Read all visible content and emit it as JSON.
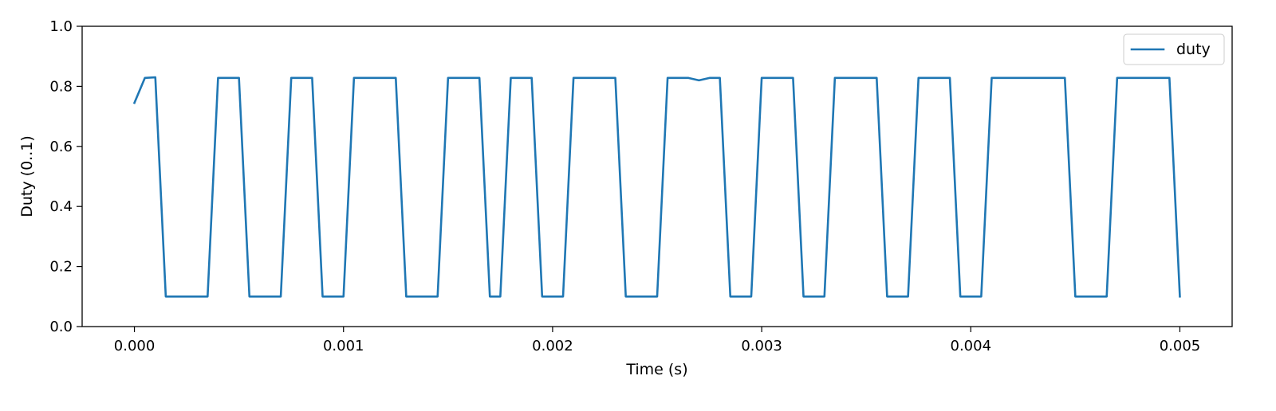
{
  "chart_data": {
    "type": "line",
    "title": "",
    "xlabel": "Time (s)",
    "ylabel": "Duty (0..1)",
    "xlim": [
      -0.00025,
      0.00525
    ],
    "ylim": [
      0.0,
      1.0
    ],
    "x_ticks": [
      0.0,
      0.001,
      0.002,
      0.003,
      0.004,
      0.005
    ],
    "x_tick_labels": [
      "0.000",
      "0.001",
      "0.002",
      "0.003",
      "0.004",
      "0.005"
    ],
    "y_ticks": [
      0.0,
      0.2,
      0.4,
      0.6,
      0.8,
      1.0
    ],
    "y_tick_labels": [
      "0.0",
      "0.2",
      "0.4",
      "0.6",
      "0.8",
      "1.0"
    ],
    "grid": false,
    "legend": {
      "position": "top-right",
      "entries": [
        "duty"
      ]
    },
    "series": [
      {
        "name": "duty",
        "color": "#1f77b4",
        "x": [
          0.0,
          5e-05,
          0.0001,
          0.00015,
          0.00035,
          0.0004,
          0.0005,
          0.00055,
          0.0007,
          0.00075,
          0.00085,
          0.0009,
          0.001,
          0.00105,
          0.00125,
          0.0013,
          0.00145,
          0.0015,
          0.00165,
          0.0017,
          0.00175,
          0.0018,
          0.0019,
          0.00195,
          0.00205,
          0.0021,
          0.0023,
          0.00235,
          0.0025,
          0.00255,
          0.00265,
          0.0027,
          0.00275,
          0.0028,
          0.00285,
          0.00295,
          0.003,
          0.00315,
          0.0032,
          0.0033,
          0.00335,
          0.00355,
          0.0036,
          0.0037,
          0.00375,
          0.0039,
          0.00395,
          0.00405,
          0.0041,
          0.00445,
          0.0045,
          0.00465,
          0.0047,
          0.00495,
          0.005
        ],
        "y": [
          0.745,
          0.828,
          0.83,
          0.1,
          0.1,
          0.828,
          0.828,
          0.1,
          0.1,
          0.828,
          0.828,
          0.1,
          0.1,
          0.828,
          0.828,
          0.1,
          0.1,
          0.828,
          0.828,
          0.1,
          0.1,
          0.828,
          0.828,
          0.1,
          0.1,
          0.828,
          0.828,
          0.1,
          0.1,
          0.828,
          0.828,
          0.82,
          0.828,
          0.828,
          0.1,
          0.1,
          0.828,
          0.828,
          0.1,
          0.1,
          0.828,
          0.828,
          0.1,
          0.1,
          0.828,
          0.828,
          0.1,
          0.1,
          0.828,
          0.828,
          0.1,
          0.1,
          0.828,
          0.828,
          0.1
        ]
      }
    ]
  }
}
